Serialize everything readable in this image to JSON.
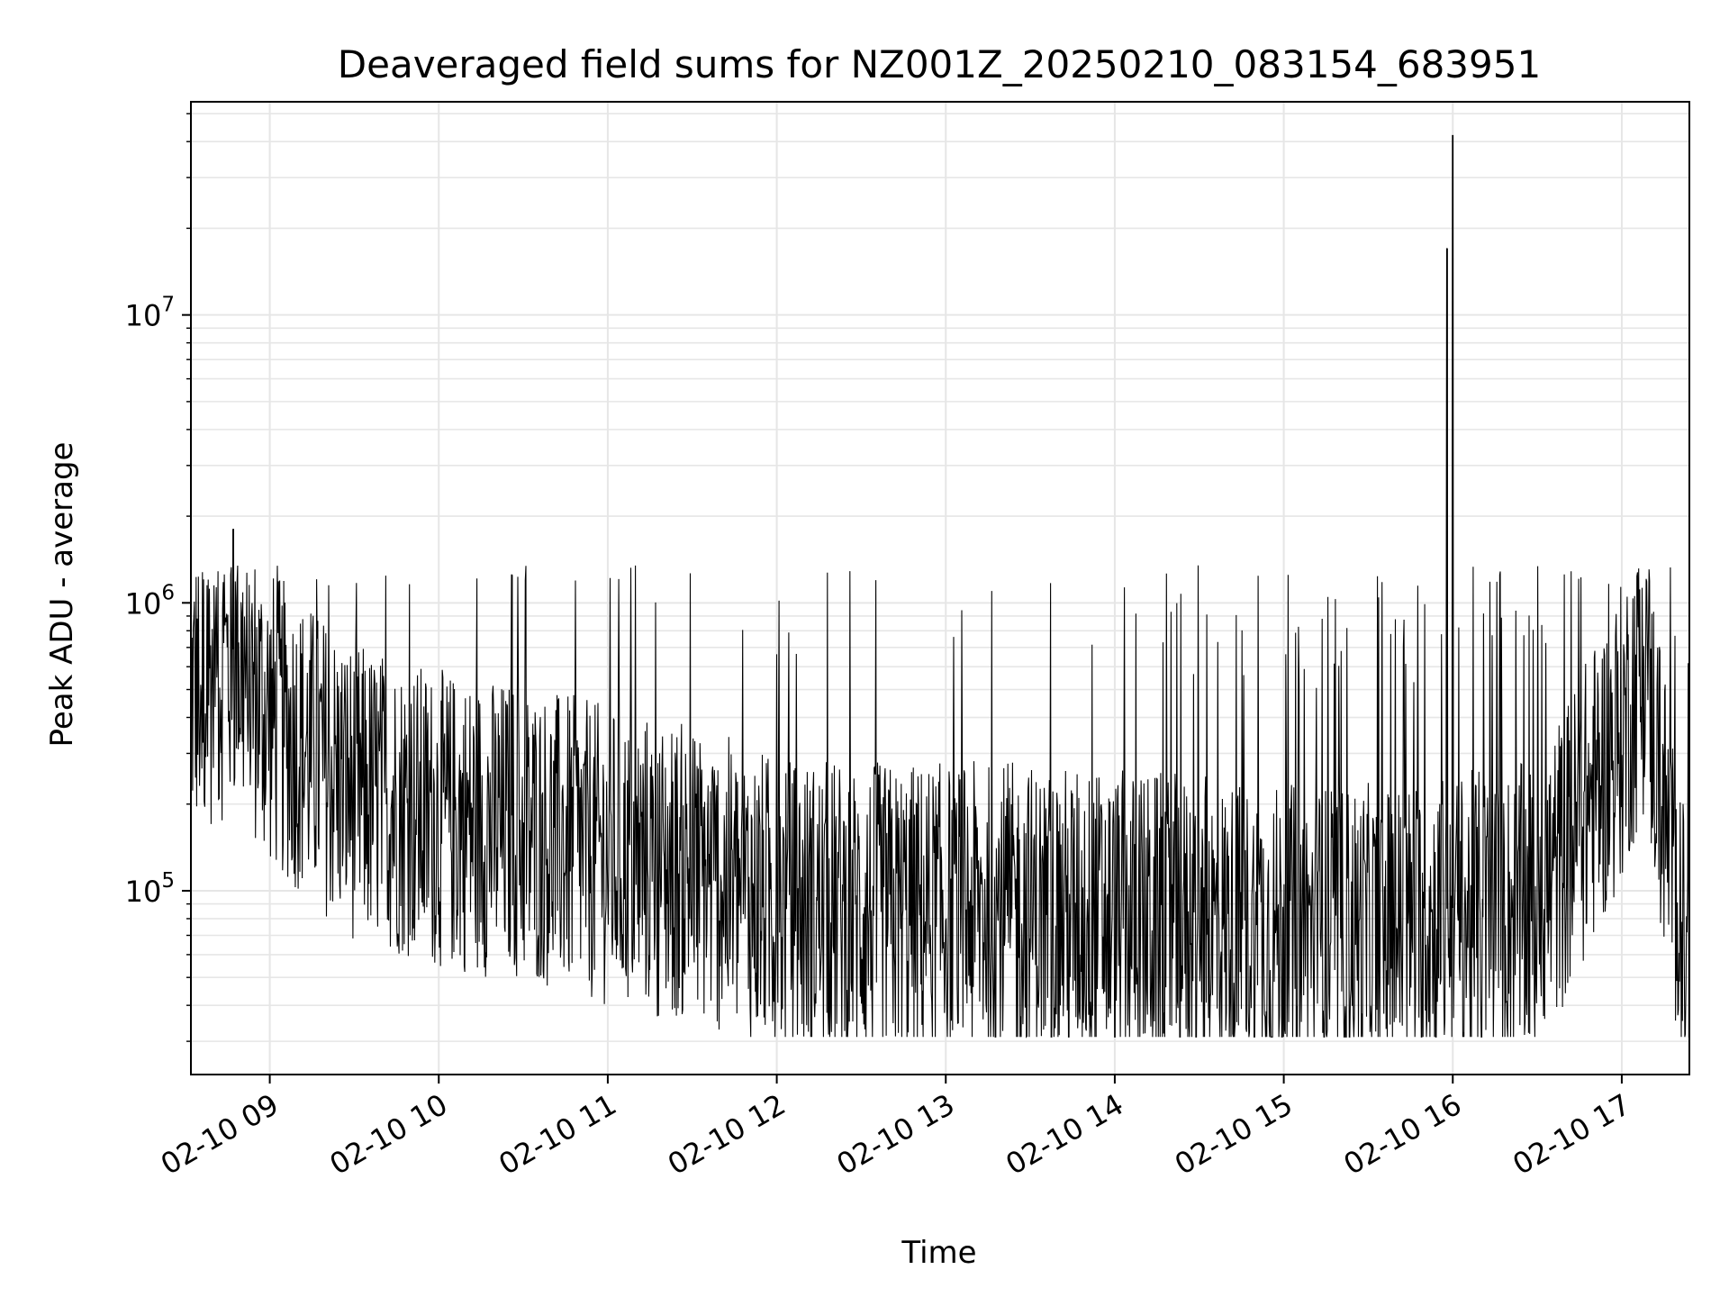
{
  "chart_data": {
    "type": "line",
    "title": "Deaveraged field sums for NZ001Z_20250210_083154_683951",
    "xlabel": "Time",
    "ylabel": "Peak ADU - average",
    "yscale": "log",
    "ylim": [
      23000,
      55000000
    ],
    "xlim": [
      "2025-02-10 08:32",
      "2025-02-10 17:24"
    ],
    "x_tick_labels": [
      "02-10 09",
      "02-10 10",
      "02-10 11",
      "02-10 12",
      "02-10 13",
      "02-10 14",
      "02-10 15",
      "02-10 16",
      "02-10 17"
    ],
    "x_tick_times": [
      "2025-02-10 09:00",
      "2025-02-10 10:00",
      "2025-02-10 11:00",
      "2025-02-10 12:00",
      "2025-02-10 13:00",
      "2025-02-10 14:00",
      "2025-02-10 15:00",
      "2025-02-10 16:00",
      "2025-02-10 17:00"
    ],
    "y_tick_labels": [
      {
        "base": "10",
        "exp": "5",
        "value": 100000
      },
      {
        "base": "10",
        "exp": "6",
        "value": 1000000
      },
      {
        "base": "10",
        "exp": "7",
        "value": 10000000
      }
    ],
    "grid": true,
    "line_color": "#000000",
    "grid_color": "#e6e6e6",
    "series": [
      {
        "x": [
          "2025-02-10 08:32",
          "2025-02-10 08:48",
          "2025-02-10 09:00",
          "2025-02-10 09:30",
          "2025-02-10 10:00",
          "2025-02-10 10:30",
          "2025-02-10 11:00",
          "2025-02-10 11:30",
          "2025-02-10 12:00",
          "2025-02-10 12:30",
          "2025-02-10 13:00",
          "2025-02-10 13:30",
          "2025-02-10 14:00",
          "2025-02-10 14:30",
          "2025-02-10 15:00",
          "2025-02-10 15:30",
          "2025-02-10 15:58",
          "2025-02-10 16:00",
          "2025-02-10 16:30",
          "2025-02-10 17:00",
          "2025-02-10 17:08",
          "2025-02-10 17:24"
        ],
        "y": [
          550000,
          700000,
          450000,
          250000,
          200000,
          180000,
          150000,
          130000,
          100000,
          95000,
          95000,
          95000,
          90000,
          85000,
          80000,
          80000,
          17000000,
          42000000,
          95000,
          400000,
          700000,
          48000
        ]
      }
    ],
    "notes_visible_spikes": [
      {
        "x": "2025-02-10 15:58",
        "y": 17000000
      },
      {
        "x": "2025-02-10 16:00",
        "y": 42000000
      },
      {
        "x": "2025-02-10 08:47",
        "y": 1800000
      },
      {
        "x": "2025-02-10 10:26",
        "y": 1250000
      }
    ]
  }
}
